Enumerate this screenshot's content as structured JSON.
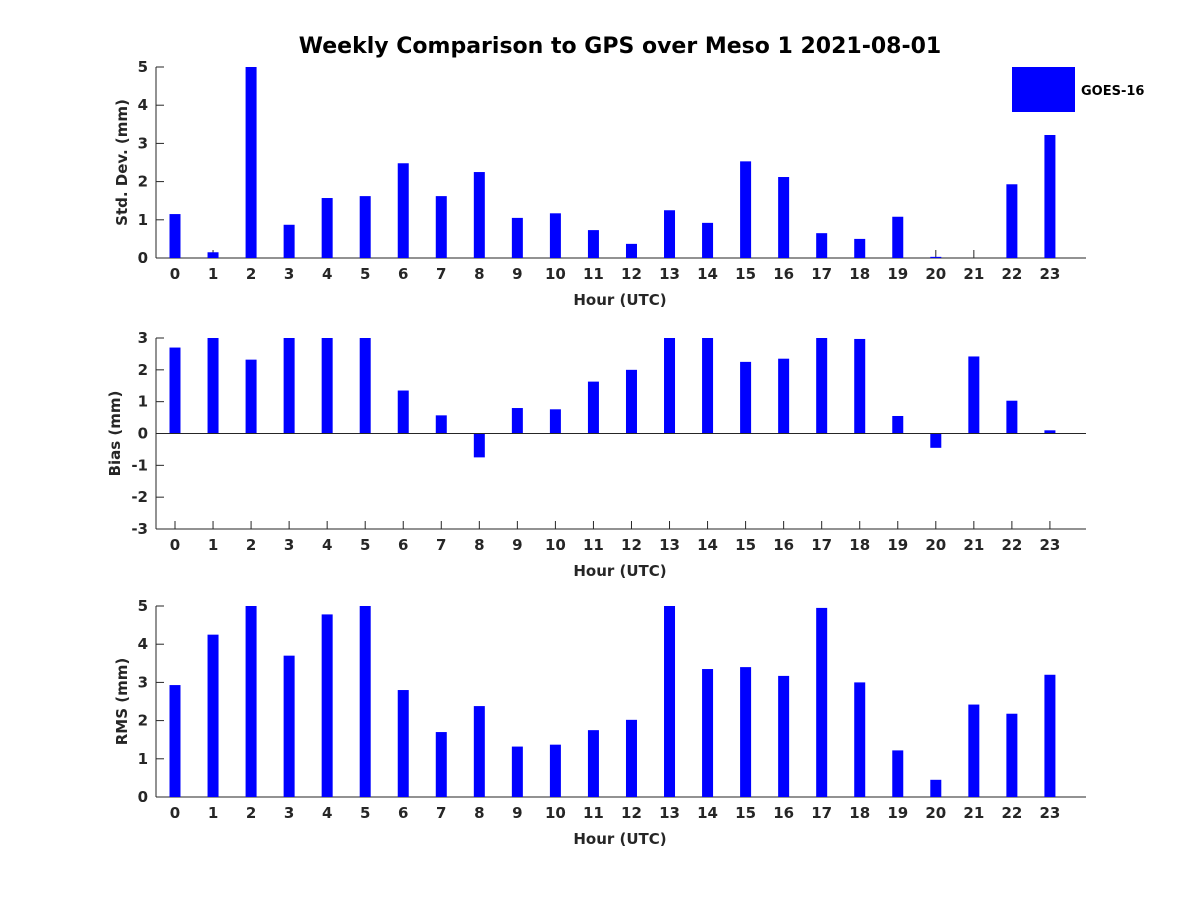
{
  "title": "Weekly Comparison to GPS over Meso 1 2021-08-01",
  "legend": {
    "label": "GOES-16",
    "color": "#0000ff"
  },
  "chart_data": [
    {
      "type": "bar",
      "name": "std",
      "xlabel": "Hour (UTC)",
      "ylabel": "Std. Dev. (mm)",
      "ylim": [
        0,
        5
      ],
      "yticks": [
        0,
        1,
        2,
        3,
        4,
        5
      ],
      "categories": [
        "0",
        "1",
        "2",
        "3",
        "4",
        "5",
        "6",
        "7",
        "8",
        "9",
        "10",
        "11",
        "12",
        "13",
        "14",
        "15",
        "16",
        "17",
        "18",
        "19",
        "20",
        "21",
        "22",
        "23"
      ],
      "series": [
        {
          "name": "GOES-16",
          "values": [
            1.15,
            0.15,
            5.0,
            0.87,
            1.57,
            1.62,
            2.48,
            1.62,
            2.25,
            1.05,
            1.17,
            0.73,
            0.37,
            1.25,
            0.92,
            2.53,
            2.12,
            0.65,
            0.5,
            1.08,
            0.03,
            0.0,
            1.93,
            3.22
          ]
        }
      ],
      "legend": "top-right"
    },
    {
      "type": "bar",
      "name": "bias",
      "xlabel": "Hour (UTC)",
      "ylabel": "Bias (mm)",
      "ylim": [
        -3,
        3
      ],
      "yticks": [
        -3,
        -2,
        -1,
        0,
        1,
        2,
        3
      ],
      "categories": [
        "0",
        "1",
        "2",
        "3",
        "4",
        "5",
        "6",
        "7",
        "8",
        "9",
        "10",
        "11",
        "12",
        "13",
        "14",
        "15",
        "16",
        "17",
        "18",
        "19",
        "20",
        "21",
        "22",
        "23"
      ],
      "series": [
        {
          "name": "GOES-16",
          "values": [
            2.7,
            3.0,
            2.32,
            3.0,
            3.0,
            3.0,
            1.35,
            0.57,
            -0.75,
            0.8,
            0.76,
            1.63,
            2.0,
            3.0,
            3.0,
            2.25,
            2.35,
            3.0,
            2.97,
            0.55,
            -0.45,
            2.42,
            1.03,
            0.1
          ]
        }
      ]
    },
    {
      "type": "bar",
      "name": "rms",
      "xlabel": "Hour (UTC)",
      "ylabel": "RMS (mm)",
      "ylim": [
        0,
        5
      ],
      "yticks": [
        0,
        1,
        2,
        3,
        4,
        5
      ],
      "categories": [
        "0",
        "1",
        "2",
        "3",
        "4",
        "5",
        "6",
        "7",
        "8",
        "9",
        "10",
        "11",
        "12",
        "13",
        "14",
        "15",
        "16",
        "17",
        "18",
        "19",
        "20",
        "21",
        "22",
        "23"
      ],
      "series": [
        {
          "name": "GOES-16",
          "values": [
            2.93,
            4.25,
            5.0,
            3.7,
            4.78,
            5.0,
            2.8,
            1.7,
            2.38,
            1.32,
            1.37,
            1.75,
            2.02,
            5.0,
            3.35,
            3.4,
            3.17,
            4.95,
            3.0,
            1.22,
            0.45,
            2.42,
            2.18,
            3.2
          ]
        }
      ]
    }
  ]
}
